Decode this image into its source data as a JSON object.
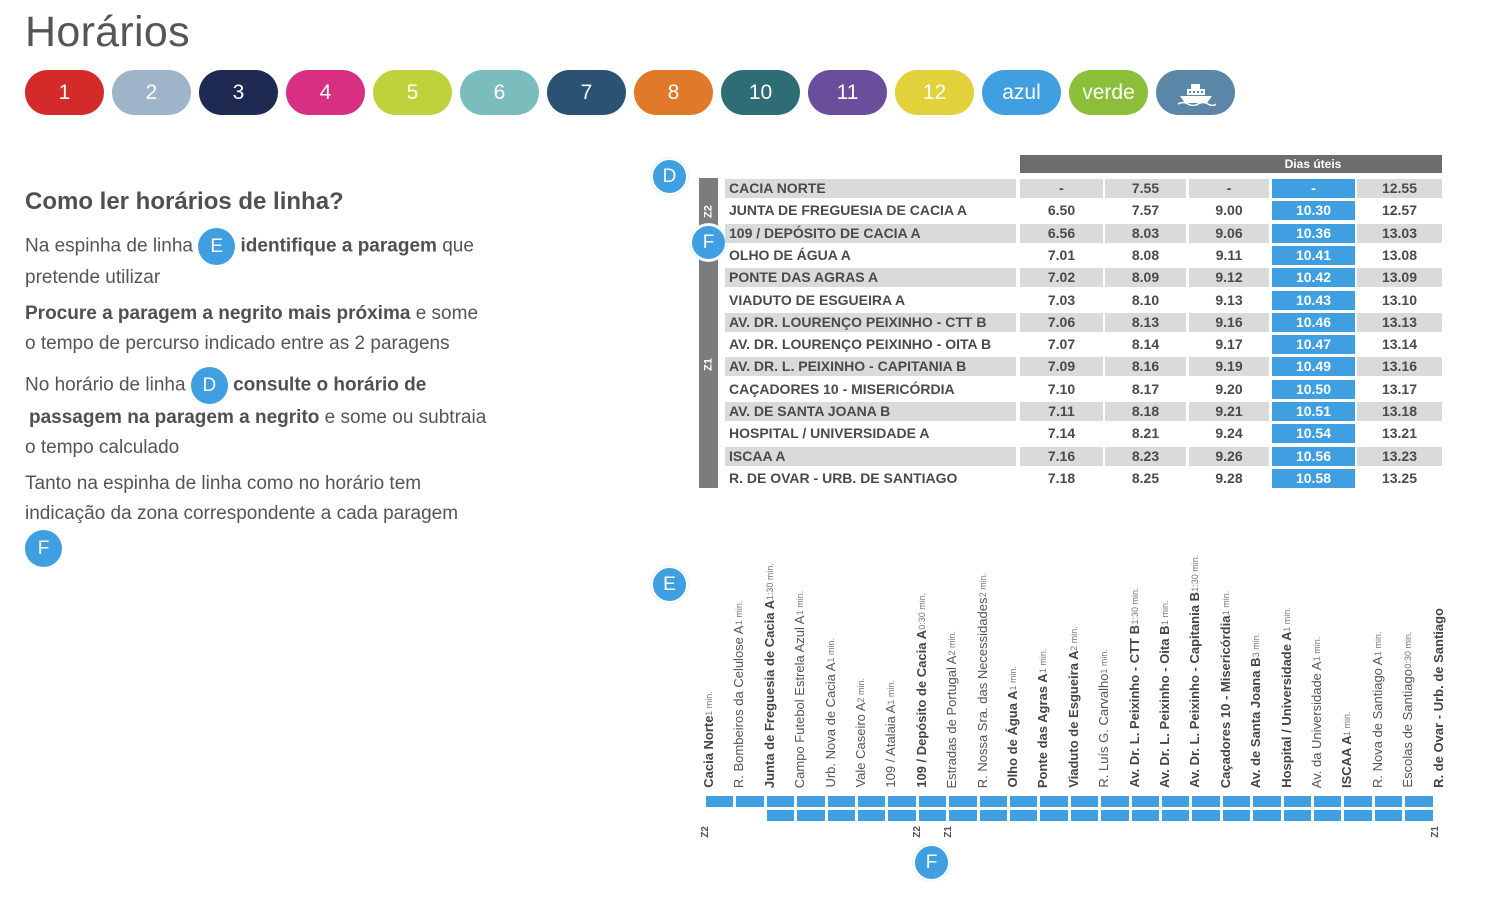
{
  "page": {
    "title": "Horários"
  },
  "lines": [
    {
      "label": "1",
      "color": "#d42a2a"
    },
    {
      "label": "2",
      "color": "#9db4c9"
    },
    {
      "label": "3",
      "color": "#1f2a52"
    },
    {
      "label": "4",
      "color": "#d92f83"
    },
    {
      "label": "5",
      "color": "#bfd23c"
    },
    {
      "label": "6",
      "color": "#7bbcbc"
    },
    {
      "label": "7",
      "color": "#2b5272"
    },
    {
      "label": "8",
      "color": "#e07a2a"
    },
    {
      "label": "10",
      "color": "#2e6d76"
    },
    {
      "label": "11",
      "color": "#6a4e9c"
    },
    {
      "label": "12",
      "color": "#e2d13a"
    },
    {
      "label": "azul",
      "color": "#3f9fe0"
    },
    {
      "label": "verde",
      "color": "#8bbf3a"
    },
    {
      "label": "",
      "icon": "ferry-icon",
      "color": "#5b86a8"
    }
  ],
  "help": {
    "title": "Como ler horários de linha?",
    "p1_a": "Na espinha de linha",
    "p1_badge": "E",
    "p1_b": "identifique a paragem",
    "p1_c": "que",
    "p1_d": "pretende utilizar",
    "p2_a": "Procure a paragem a negrito mais próxima",
    "p2_b": "e some",
    "p2_c": "o tempo de percurso indicado entre as 2 paragens",
    "p3_a": "No horário de linha",
    "p3_badge": "D",
    "p3_b": "consulte o horário de",
    "p3_c": "passagem na paragem a negrito",
    "p3_d": "e some ou subtraia",
    "p3_e": "o tempo calculado",
    "p4_a": "Tanto na espinha de linha como no horário tem",
    "p4_b": "indicação da zona correspondente a cada paragem",
    "p4_badge": "F"
  },
  "markers": {
    "d": "D",
    "e": "E",
    "f_table": "F",
    "f_spine": "F"
  },
  "timetable": {
    "header": "Dias úteis",
    "zones": [
      "Z2",
      "Z1"
    ],
    "rows": [
      {
        "stop": "CACIA NORTE",
        "times": [
          "-",
          "7.55",
          "-",
          "-",
          "12.55"
        ]
      },
      {
        "stop": "JUNTA DE FREGUESIA DE CACIA A",
        "times": [
          "6.50",
          "7.57",
          "9.00",
          "10.30",
          "12.57"
        ]
      },
      {
        "stop": "109 / DEPÓSITO DE CACIA A",
        "times": [
          "6.56",
          "8.03",
          "9.06",
          "10.36",
          "13.03"
        ]
      },
      {
        "stop": "OLHO DE ÁGUA A",
        "times": [
          "7.01",
          "8.08",
          "9.11",
          "10.41",
          "13.08"
        ]
      },
      {
        "stop": "PONTE DAS AGRAS A",
        "times": [
          "7.02",
          "8.09",
          "9.12",
          "10.42",
          "13.09"
        ]
      },
      {
        "stop": "VIADUTO DE ESGUEIRA A",
        "times": [
          "7.03",
          "8.10",
          "9.13",
          "10.43",
          "13.10"
        ]
      },
      {
        "stop": "AV. DR. LOURENÇO PEIXINHO - CTT B",
        "times": [
          "7.06",
          "8.13",
          "9.16",
          "10.46",
          "13.13"
        ]
      },
      {
        "stop": "AV. DR. LOURENÇO PEIXINHO - OITA B",
        "times": [
          "7.07",
          "8.14",
          "9.17",
          "10.47",
          "13.14"
        ]
      },
      {
        "stop": "AV. DR. L. PEIXINHO - CAPITANIA B",
        "times": [
          "7.09",
          "8.16",
          "9.19",
          "10.49",
          "13.16"
        ]
      },
      {
        "stop": "CAÇADORES 10 - MISERICÓRDIA",
        "times": [
          "7.10",
          "8.17",
          "9.20",
          "10.50",
          "13.17"
        ]
      },
      {
        "stop": "AV. DE SANTA JOANA B",
        "times": [
          "7.11",
          "8.18",
          "9.21",
          "10.51",
          "13.18"
        ]
      },
      {
        "stop": "HOSPITAL / UNIVERSIDADE A",
        "times": [
          "7.14",
          "8.21",
          "9.24",
          "10.54",
          "13.21"
        ]
      },
      {
        "stop": "ISCAA A",
        "times": [
          "7.16",
          "8.23",
          "9.26",
          "10.56",
          "13.23"
        ]
      },
      {
        "stop": "R. DE OVAR - URB. DE SANTIAGO",
        "times": [
          "7.18",
          "8.25",
          "9.28",
          "10.58",
          "13.25"
        ]
      }
    ]
  },
  "spine": {
    "stops": [
      {
        "name": "Cacia Norte",
        "bold": true,
        "time": "1 min."
      },
      {
        "name": "R. Bombeiros da Celulose A",
        "bold": false,
        "time": "1 min."
      },
      {
        "name": "Junta de Freguesia de Cacia A",
        "bold": true,
        "time": "1:30 min."
      },
      {
        "name": "Campo Futebol Estrela Azul A",
        "bold": false,
        "time": "1 min."
      },
      {
        "name": "Urb. Nova de Cacia A",
        "bold": false,
        "time": "1 min."
      },
      {
        "name": "Vale Caseiro A",
        "bold": false,
        "time": "2 min."
      },
      {
        "name": "109 / Atalaia A",
        "bold": false,
        "time": "1 min."
      },
      {
        "name": "109 / Depósito de Cacia A",
        "bold": true,
        "time": "0:30 min."
      },
      {
        "name": "Estradas de Portugal A",
        "bold": false,
        "time": "2 min."
      },
      {
        "name": "R. Nossa Sra. das Necessidades",
        "bold": false,
        "time": "2 min."
      },
      {
        "name": "Olho de Água A",
        "bold": true,
        "time": "1 min."
      },
      {
        "name": "Ponte das Agras A",
        "bold": true,
        "time": "1 min."
      },
      {
        "name": "Viaduto de Esgueira A",
        "bold": true,
        "time": "2 min."
      },
      {
        "name": "R. Luís G. Carvalho",
        "bold": false,
        "time": "1 min."
      },
      {
        "name": "Av. Dr. L. Peixinho - CTT B",
        "bold": true,
        "time": "1:30 min."
      },
      {
        "name": "Av. Dr. L. Peixinho - Oita B",
        "bold": true,
        "time": "1 min."
      },
      {
        "name": "Av. Dr. L. Peixinho - Capitania B",
        "bold": true,
        "time": "1:30 min."
      },
      {
        "name": "Caçadores 10 - Misericórdia",
        "bold": true,
        "time": "1 min."
      },
      {
        "name": "Av. de Santa Joana B",
        "bold": true,
        "time": "3 min."
      },
      {
        "name": "Hospital / Universidade A",
        "bold": true,
        "time": "1 min."
      },
      {
        "name": "Av. da Universidade A",
        "bold": false,
        "time": "1 min."
      },
      {
        "name": "ISCAA A",
        "bold": true,
        "time": "1 min."
      },
      {
        "name": "R. Nova de Santiago A",
        "bold": false,
        "time": "1 min."
      },
      {
        "name": "Escolas de Santiago",
        "bold": false,
        "time": "0:30 min."
      },
      {
        "name": "R. de Ovar - Urb. de Santiago",
        "bold": true,
        "time": ""
      }
    ],
    "zone_labels": [
      "Z2",
      "Z2",
      "Z1",
      "Z1"
    ]
  }
}
